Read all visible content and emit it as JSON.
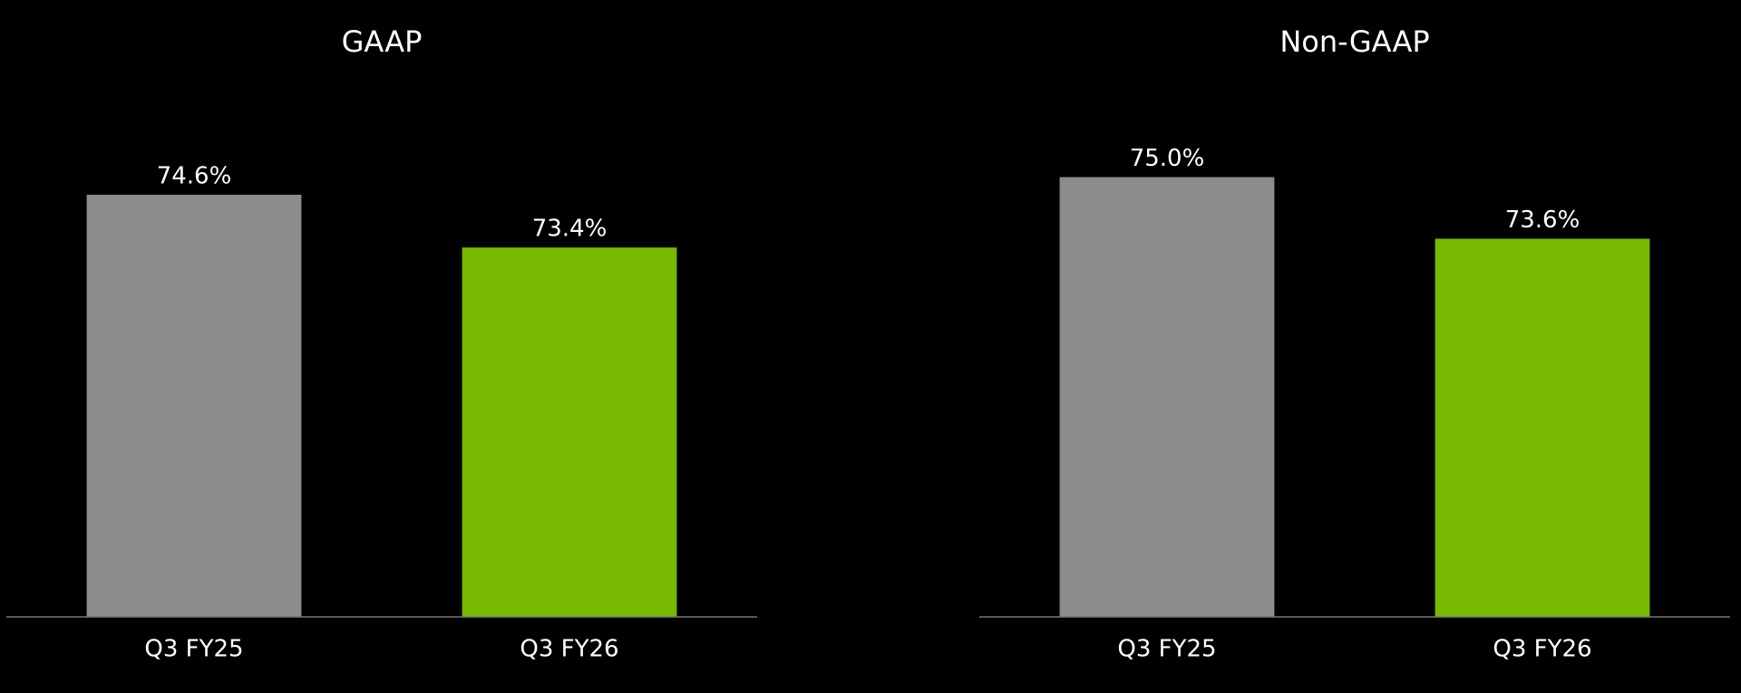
{
  "chart_data": [
    {
      "type": "bar",
      "title": "GAAP",
      "categories": [
        "Q3 FY25",
        "Q3 FY26"
      ],
      "values": [
        74.6,
        73.4
      ],
      "value_labels": [
        "74.6%",
        "73.4%"
      ],
      "colors": [
        "#8c8c8c",
        "#76b900"
      ],
      "ylim": [
        65,
        76
      ]
    },
    {
      "type": "bar",
      "title": "Non-GAAP",
      "categories": [
        "Q3 FY25",
        "Q3 FY26"
      ],
      "values": [
        75.0,
        73.6
      ],
      "value_labels": [
        "75.0%",
        "73.6%"
      ],
      "colors": [
        "#8c8c8c",
        "#76b900"
      ],
      "ylim": [
        65,
        76
      ]
    }
  ]
}
